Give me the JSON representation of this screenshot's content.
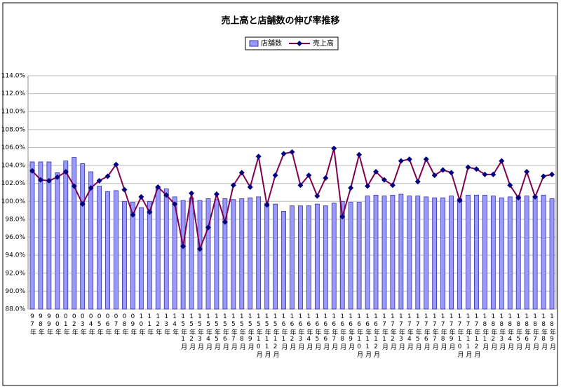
{
  "chart_data": {
    "type": "bar_line",
    "title": "売上高と店舗数の伸び率推移",
    "categories": [
      "97年",
      "98年",
      "99年",
      "00年",
      "01年",
      "02年",
      "03年",
      "04年",
      "05年",
      "06年",
      "07年",
      "08年",
      "09年",
      "10年",
      "11年",
      "12年",
      "13年",
      "14年",
      "15年1月",
      "15年2月",
      "15年3月",
      "15年4月",
      "15年5月",
      "15年6月",
      "15年7月",
      "15年8月",
      "15年9月",
      "15年10月",
      "15年11月",
      "15年12月",
      "16年1月",
      "16年2月",
      "16年3月",
      "16年4月",
      "16年5月",
      "16年6月",
      "16年7月",
      "16年8月",
      "16年9月",
      "16年10月",
      "16年11月",
      "16年12月",
      "17年1月",
      "17年2月",
      "17年3月",
      "17年4月",
      "17年5月",
      "17年6月",
      "17年7月",
      "17年8月",
      "17年9月",
      "17年10月",
      "17年11月",
      "17年12月",
      "18年1月",
      "18年2月",
      "18年3月",
      "18年4月",
      "18年5月",
      "18年6月",
      "18年7月",
      "18年8月",
      "18年9月"
    ],
    "series": [
      {
        "name": "店舗数",
        "kind": "bar",
        "color": "#9999ff",
        "values": [
          104.4,
          104.4,
          104.4,
          103.2,
          104.5,
          104.9,
          104.2,
          103.3,
          101.7,
          101.1,
          101.2,
          100.0,
          99.9,
          99.3,
          100.0,
          101.6,
          101.4,
          100.5,
          100.1,
          100.4,
          100.1,
          100.3,
          100.2,
          100.3,
          100.2,
          100.3,
          100.4,
          100.5,
          99.8,
          99.7,
          98.9,
          99.5,
          99.5,
          99.5,
          99.7,
          99.5,
          99.8,
          100.0,
          99.9,
          99.9,
          100.6,
          100.7,
          100.6,
          100.7,
          100.8,
          100.6,
          100.6,
          100.5,
          100.4,
          100.4,
          100.6,
          100.3,
          100.7,
          100.7,
          100.7,
          100.6,
          100.4,
          100.5,
          100.6,
          100.6,
          100.6,
          100.7,
          100.3
        ]
      },
      {
        "name": "売上高",
        "kind": "line",
        "color": "#800050",
        "values": [
          103.4,
          102.4,
          102.3,
          102.7,
          103.3,
          101.7,
          99.7,
          101.5,
          102.3,
          102.8,
          104.1,
          101.3,
          98.5,
          100.5,
          98.8,
          101.6,
          100.7,
          99.7,
          95.0,
          100.9,
          94.7,
          97.1,
          100.8,
          97.7,
          101.8,
          103.2,
          101.6,
          105.0,
          99.6,
          102.9,
          105.3,
          105.5,
          101.8,
          102.9,
          100.6,
          102.6,
          105.9,
          98.3,
          101.5,
          105.2,
          101.7,
          103.3,
          102.4,
          101.8,
          104.5,
          104.7,
          102.2,
          104.7,
          102.9,
          103.5,
          103.2,
          100.1,
          103.8,
          103.6,
          103.0,
          103.0,
          104.5,
          101.8,
          100.4,
          103.3,
          100.5,
          102.8,
          103.0
        ]
      }
    ],
    "ylim": [
      88,
      114
    ],
    "yticks": [
      {
        "value": 88,
        "label": "88.0%"
      },
      {
        "value": 90,
        "label": "90.0%"
      },
      {
        "value": 92,
        "label": "92.0%"
      },
      {
        "value": 94,
        "label": "94.0%"
      },
      {
        "value": 96,
        "label": "96.0%"
      },
      {
        "value": 98,
        "label": "98.0%"
      },
      {
        "value": 100,
        "label": "100.0%"
      },
      {
        "value": 102,
        "label": "102.0%"
      },
      {
        "value": 104,
        "label": "104.0%"
      },
      {
        "value": 106,
        "label": "106.0%"
      },
      {
        "value": 108,
        "label": "108.0%"
      },
      {
        "value": 110,
        "label": "110.0%"
      },
      {
        "value": 112,
        "label": "112.0%"
      },
      {
        "value": 114,
        "label": "114.0%"
      }
    ],
    "grid": true,
    "legend": "top"
  }
}
